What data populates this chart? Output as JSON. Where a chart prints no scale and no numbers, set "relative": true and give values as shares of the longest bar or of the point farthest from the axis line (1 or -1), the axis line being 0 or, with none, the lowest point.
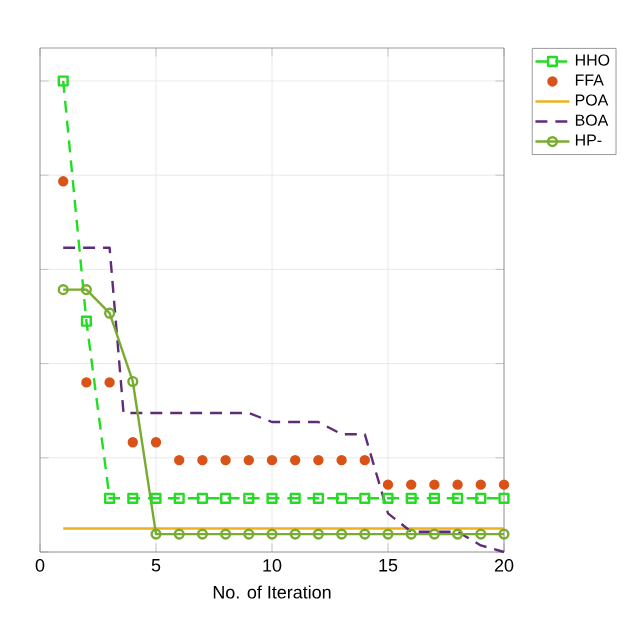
{
  "chart_data": {
    "type": "line",
    "xlabel": "No. of Iteration",
    "relative": true,
    "xlim": [
      0,
      20
    ],
    "xticks": [
      0,
      5,
      10,
      15,
      20
    ],
    "grid": true,
    "legend": "top right",
    "series": [
      {
        "name": "HHO",
        "color": "#22dd22",
        "line_style": "dashed",
        "marker": "square",
        "x": [
          1,
          2,
          3,
          4,
          5,
          6,
          7,
          8,
          9,
          10,
          11,
          12,
          13,
          14,
          15,
          16,
          17,
          18,
          19,
          20
        ],
        "values": [
          1,
          0.49,
          0.114,
          0.114,
          0.114,
          0.114,
          0.114,
          0.114,
          0.114,
          0.114,
          0.114,
          0.114,
          0.114,
          0.114,
          0.114,
          0.114,
          0.114,
          0.114,
          0.114,
          0.114
        ]
      },
      {
        "name": "FFA",
        "type": "scatter",
        "color": "#d95319",
        "marker": "circle",
        "x": [
          1,
          2,
          3,
          4,
          5,
          6,
          7,
          8,
          9,
          10,
          11,
          12,
          13,
          14,
          15,
          16,
          17,
          18,
          19,
          20
        ],
        "values": [
          0.787,
          0.36,
          0.36,
          0.233,
          0.233,
          0.195,
          0.195,
          0.195,
          0.195,
          0.195,
          0.195,
          0.195,
          0.195,
          0.195,
          0.143,
          0.143,
          0.143,
          0.143,
          0.143,
          0.143
        ]
      },
      {
        "name": "POA",
        "color": "#edb120",
        "line_style": "solid",
        "marker": "none",
        "x": [
          1,
          20
        ],
        "values": [
          0.05,
          0.05
        ]
      },
      {
        "name": "BOA",
        "color": "#5e2d79",
        "line_style": "dashed",
        "marker": "none",
        "x": [
          1,
          2,
          3,
          3.6,
          4,
          5,
          6,
          7,
          8,
          9,
          10,
          11,
          12,
          13,
          14,
          15,
          16,
          17,
          18,
          19,
          20
        ],
        "values": [
          0.646,
          0.646,
          0.646,
          0.295,
          0.295,
          0.295,
          0.295,
          0.295,
          0.295,
          0.295,
          0.276,
          0.276,
          0.276,
          0.25,
          0.25,
          0.082,
          0.043,
          0.043,
          0.043,
          0.014,
          0
        ]
      },
      {
        "name": "HP-",
        "color": "#77ac30",
        "line_style": "solid",
        "marker": "circle",
        "x": [
          1,
          2,
          3,
          4,
          5,
          6,
          7,
          8,
          9,
          10,
          11,
          12,
          13,
          14,
          15,
          16,
          17,
          18,
          19,
          20
        ],
        "values": [
          0.557,
          0.557,
          0.507,
          0.362,
          0.038,
          0.038,
          0.038,
          0.038,
          0.038,
          0.038,
          0.038,
          0.038,
          0.038,
          0.038,
          0.038,
          0.038,
          0.038,
          0.038,
          0.038,
          0.038
        ]
      }
    ]
  }
}
